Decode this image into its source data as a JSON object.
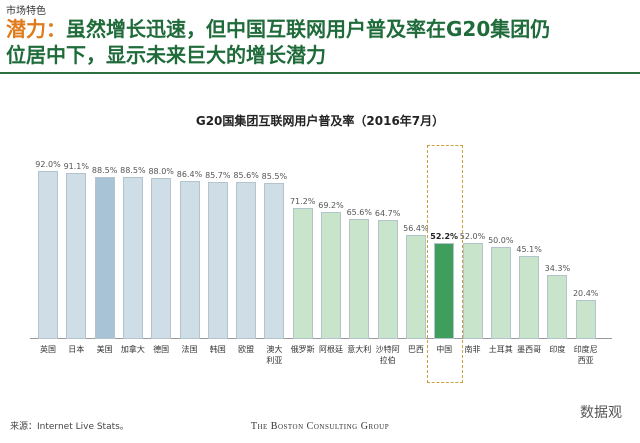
{
  "section": "市场特色",
  "headline": {
    "prefix": "潜力：",
    "line1": "虽然增长迅速，但中国互联网用户普及率在G20集团仍",
    "line2": "位居中下，显示未来巨大的增长潜力"
  },
  "chart_data": {
    "type": "bar",
    "title": "G20国集团互联网用户普及率（2016年7月）",
    "categories": [
      "英国",
      "日本",
      "美国",
      "加拿大",
      "德国",
      "法国",
      "韩国",
      "欧盟",
      "澳大\n利亚",
      "俄罗斯",
      "阿根廷",
      "意大利",
      "沙特阿\n拉伯",
      "巴西",
      "中国",
      "南非",
      "土耳其",
      "墨西哥",
      "印度",
      "印度尼\n西亚"
    ],
    "values": [
      92.0,
      91.1,
      88.5,
      88.5,
      88.0,
      86.4,
      85.7,
      85.6,
      85.5,
      71.2,
      69.2,
      65.6,
      64.7,
      56.4,
      52.2,
      52.0,
      50.0,
      45.1,
      34.3,
      20.4
    ],
    "value_labels": [
      "92.0%",
      "91.1%",
      "88.5%",
      "88.5%",
      "88.0%",
      "86.4%",
      "85.7%",
      "85.6%",
      "85.5%",
      "71.2%",
      "69.2%",
      "65.6%",
      "64.7%",
      "56.4%",
      "52.2%",
      "52.0%",
      "50.0%",
      "45.1%",
      "34.3%",
      "20.4%"
    ],
    "colors": [
      "#cfdde6",
      "#cfdde6",
      "#a9c3d6",
      "#cfdde6",
      "#cfdde6",
      "#cfdde6",
      "#cfdde6",
      "#cfdde6",
      "#cfdde6",
      "#c8e4cb",
      "#c8e4cb",
      "#c8e4cb",
      "#c8e4cb",
      "#c8e4cb",
      "#3f9e5c",
      "#c8e4cb",
      "#c8e4cb",
      "#c8e4cb",
      "#c8e4cb",
      "#c8e4cb"
    ],
    "highlight_index": 14
  },
  "source": "来源：Internet Live Stats。",
  "footer": "The Boston Consulting Group",
  "watermark": "数据观"
}
